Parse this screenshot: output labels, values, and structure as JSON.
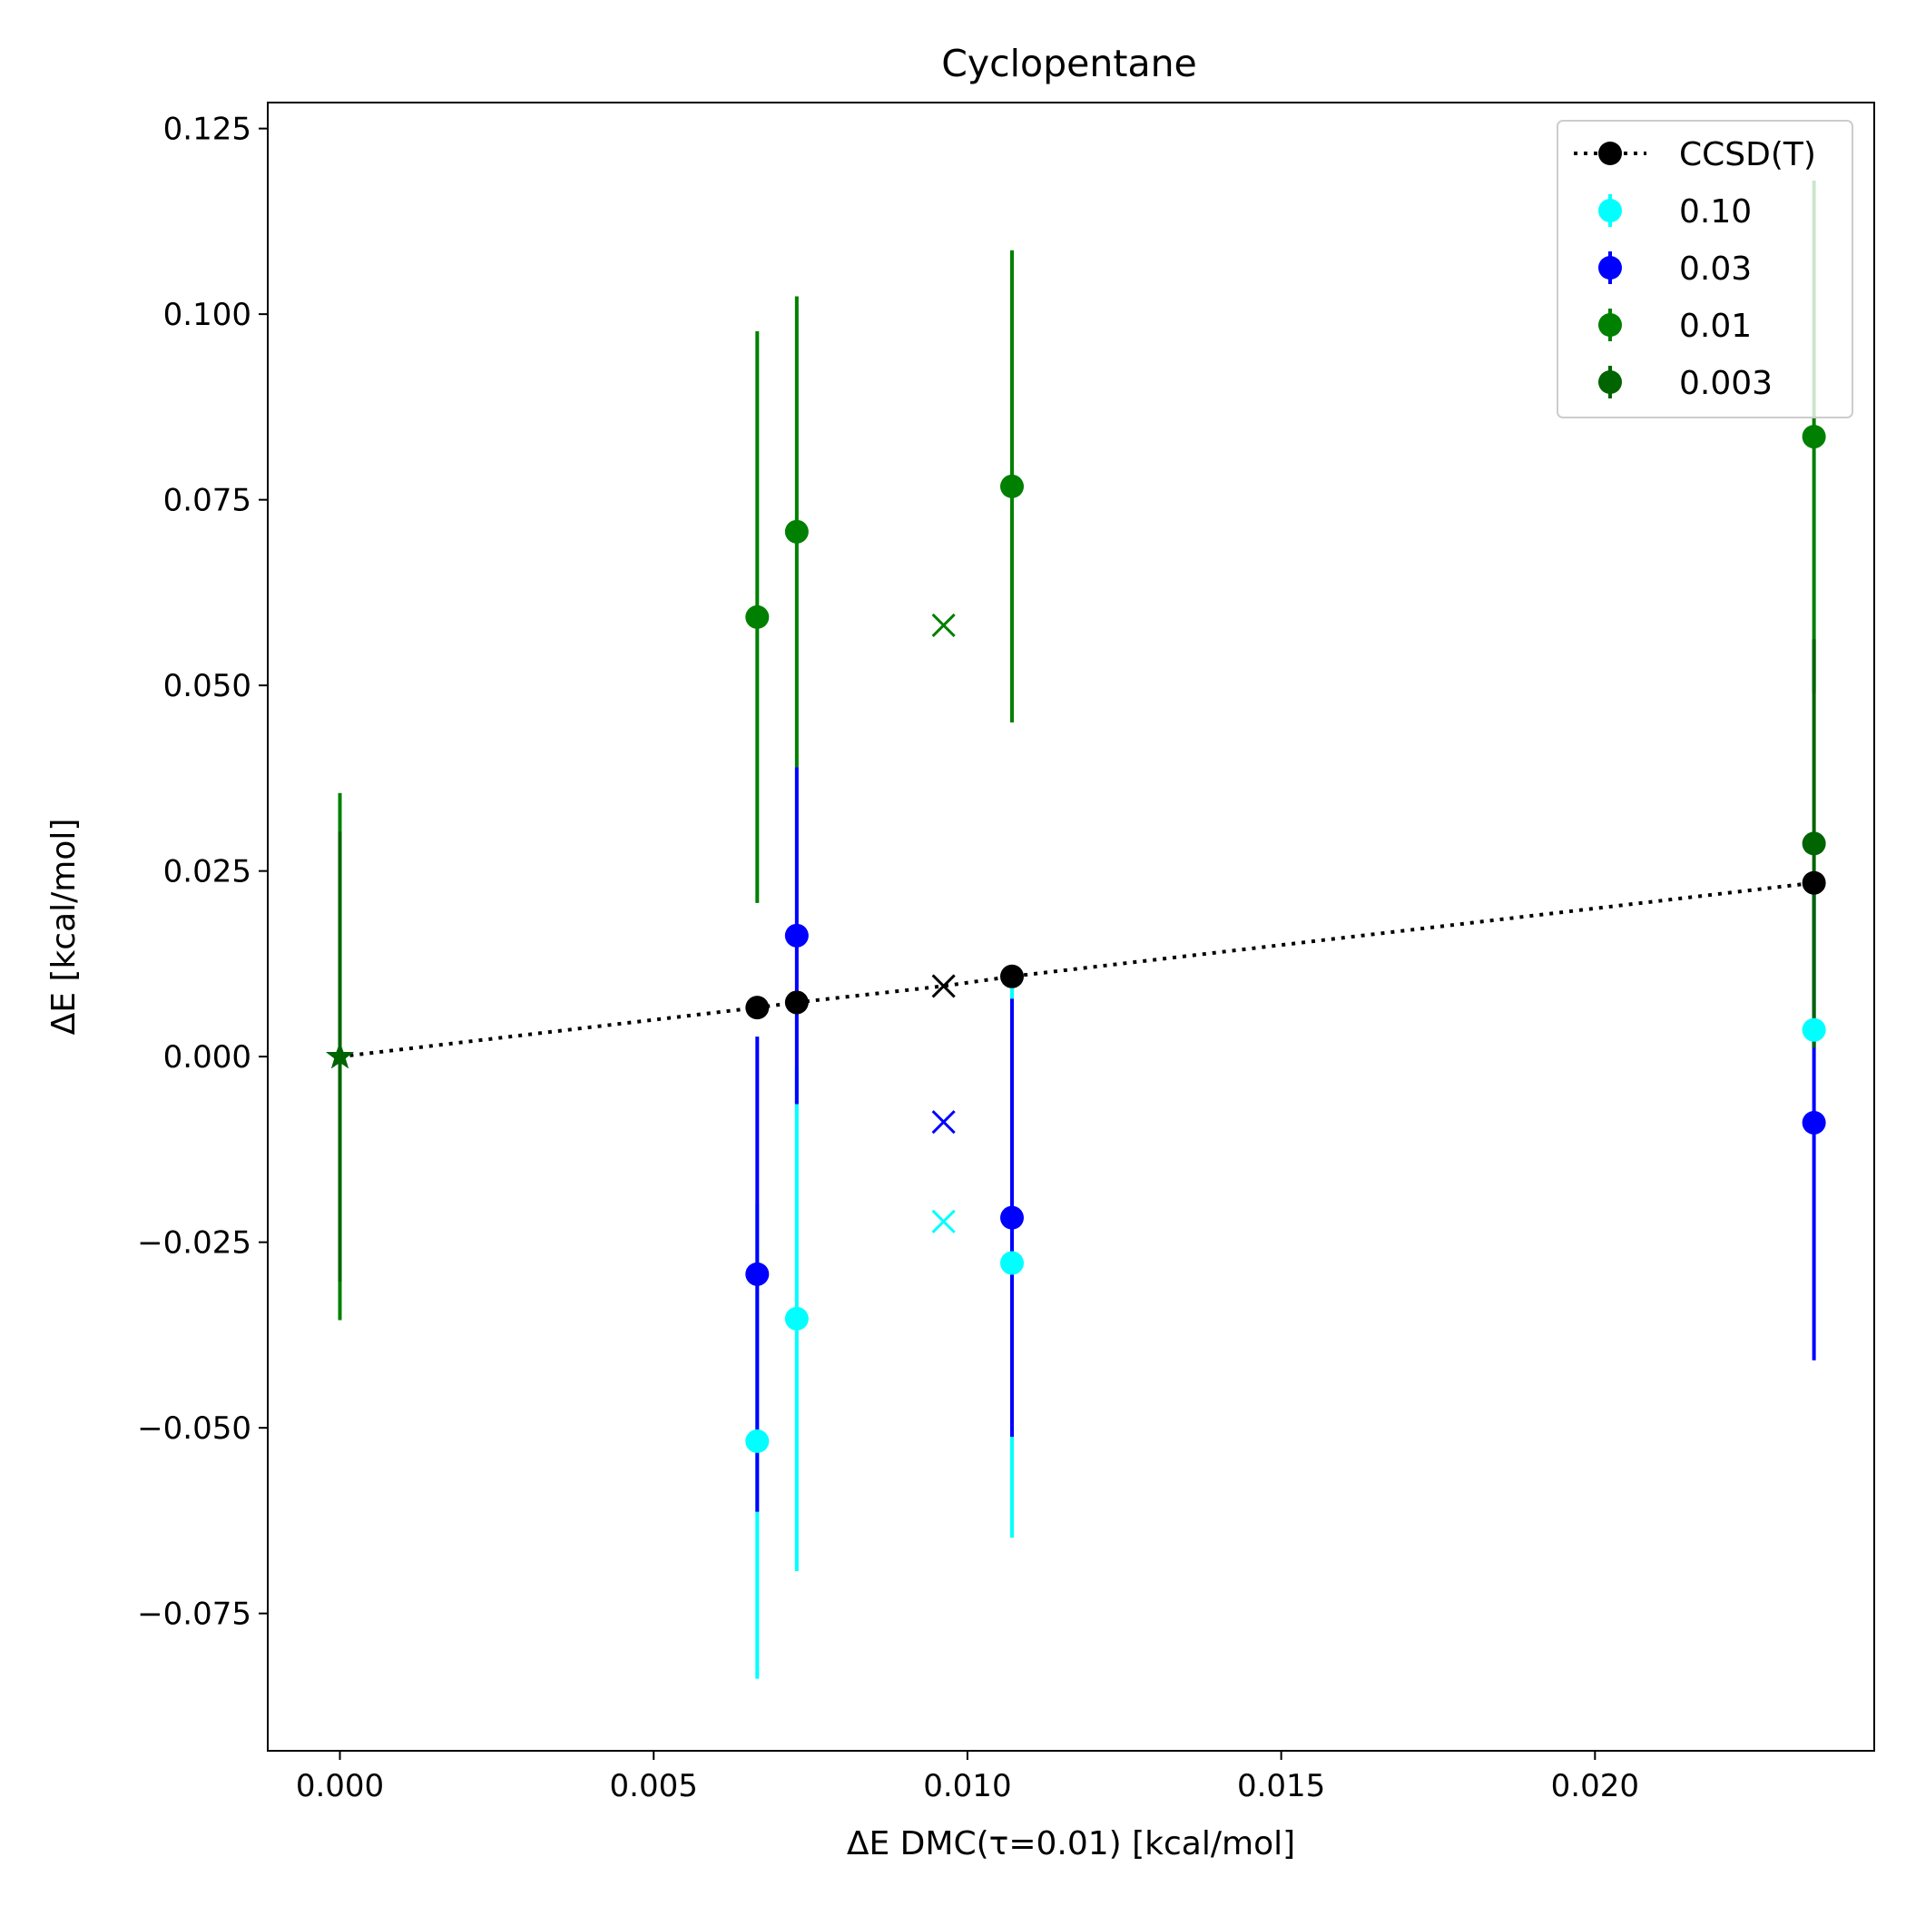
{
  "chart_data": {
    "type": "scatter",
    "title": "Cyclopentane",
    "xlabel": "ΔE DMC(τ=0.01) [kcal/mol]",
    "ylabel": "ΔE [kcal/mol]",
    "xlim": [
      -0.00115,
      0.02445
    ],
    "ylim": [
      -0.0935,
      0.1285
    ],
    "x_ticks": [
      0.0,
      0.005,
      0.01,
      0.015,
      0.02
    ],
    "x_tick_labels": [
      "0.000",
      "0.005",
      "0.010",
      "0.015",
      "0.020"
    ],
    "y_ticks": [
      -0.075,
      -0.05,
      -0.025,
      0.0,
      0.025,
      0.05,
      0.075,
      0.1,
      0.125
    ],
    "y_tick_labels": [
      "−0.075",
      "−0.050",
      "−0.025",
      "0.000",
      "0.025",
      "0.050",
      "0.075",
      "0.100",
      "0.125"
    ],
    "grid": false,
    "legend_position": "top-right",
    "reference_line": {
      "name": "CCSD(T)",
      "color": "#000000",
      "style": "dotted",
      "x": [
        0.0,
        0.00665,
        0.00728,
        0.00962,
        0.01071,
        0.02349
      ],
      "y": [
        0.0,
        0.0066,
        0.0073,
        0.0095,
        0.0108,
        0.0234
      ],
      "markers": [
        "star",
        "circle",
        "circle",
        "x",
        "circle",
        "circle"
      ]
    },
    "series": [
      {
        "name": "0.10",
        "color": "#00ffff",
        "x": [
          0.0,
          0.00665,
          0.00728,
          0.00962,
          0.01071,
          0.02349
        ],
        "y": [
          0.0,
          -0.0518,
          -0.0353,
          -0.0222,
          -0.0278,
          0.0036
        ],
        "err": [
          0.0,
          0.032,
          0.034,
          0.0,
          0.037,
          0.0
        ],
        "markers": [
          "star",
          "circle",
          "circle",
          "x",
          "circle",
          "circle"
        ]
      },
      {
        "name": "0.03",
        "color": "#0000ff",
        "x": [
          0.0,
          0.00665,
          0.00728,
          0.00962,
          0.01071,
          0.02349
        ],
        "y": [
          0.0,
          -0.0293,
          0.0163,
          -0.0088,
          -0.0217,
          -0.0089
        ],
        "err": [
          0.0,
          0.032,
          0.0227,
          0.0,
          0.0295,
          0.032
        ],
        "markers": [
          "star",
          "circle",
          "circle",
          "x",
          "circle",
          "circle"
        ]
      },
      {
        "name": "0.01",
        "color": "#008000",
        "x": [
          0.0,
          0.00665,
          0.00728,
          0.00962,
          0.01071,
          0.02349
        ],
        "y": [
          0.0,
          0.0592,
          0.0707,
          0.0581,
          0.0768,
          0.0835
        ],
        "err": [
          0.0355,
          0.0385,
          0.0317,
          0.0,
          0.0318,
          0.0345
        ],
        "markers": [
          "star",
          "circle",
          "circle",
          "x",
          "circle",
          "circle"
        ]
      },
      {
        "name": "0.003",
        "color": "#006400",
        "x": [
          0.0,
          0.02349
        ],
        "y": [
          0.0,
          0.0287
        ],
        "err": [
          0.0303,
          0.0275
        ],
        "markers": [
          "star",
          "circle"
        ]
      }
    ]
  }
}
